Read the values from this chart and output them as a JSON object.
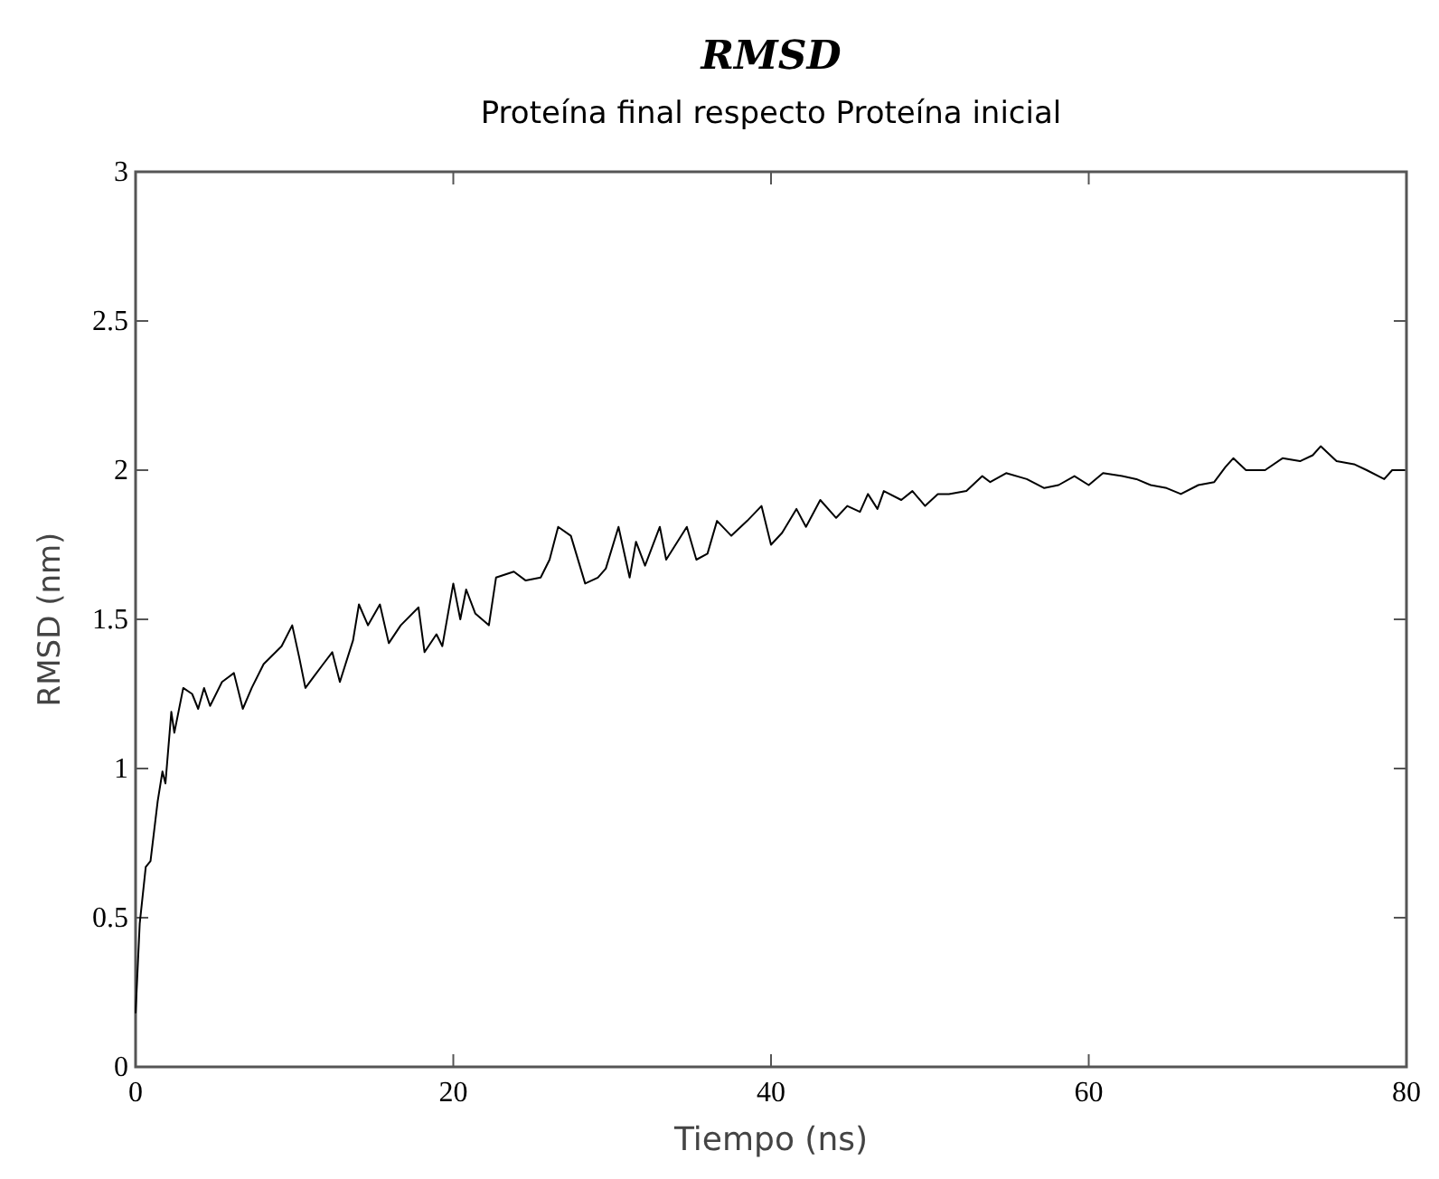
{
  "chart_data": {
    "type": "line",
    "title": "RMSD",
    "subtitle": "Proteína final respecto Proteína inicial",
    "xlabel": "Tiempo (ns)",
    "ylabel": "RMSD (nm)",
    "xlim": [
      0,
      80
    ],
    "ylim": [
      0,
      3
    ],
    "xticks": [
      0,
      20,
      40,
      60,
      80
    ],
    "yticks": [
      0,
      0.5,
      1,
      1.5,
      2,
      2.5,
      3
    ],
    "grid": false,
    "marker": "none",
    "line_style": "solid",
    "series": [
      {
        "color": "#000000",
        "x": [
          0,
          0.26,
          0.64,
          0.94,
          1.39,
          1.69,
          1.88,
          2.25,
          2.44,
          3.0,
          3.56,
          3.94,
          4.31,
          4.69,
          5.44,
          6.19,
          6.75,
          7.31,
          8.06,
          9.19,
          9.86,
          10.31,
          10.69,
          11.25,
          11.81,
          12.38,
          12.86,
          13.69,
          14.06,
          14.63,
          15.38,
          15.94,
          16.69,
          17.81,
          18.19,
          18.94,
          19.31,
          20.0,
          20.44,
          20.81,
          21.38,
          22.24,
          22.69,
          23.81,
          24.56,
          25.5,
          26.06,
          26.6,
          27.4,
          28.3,
          29.1,
          29.6,
          30.4,
          31.1,
          31.5,
          32.07,
          33.0,
          33.4,
          34.7,
          35.3,
          36.0,
          36.6,
          37.5,
          38.5,
          39.4,
          40.0,
          40.7,
          41.6,
          42.2,
          43.1,
          44.1,
          44.8,
          45.6,
          46.1,
          46.7,
          47.1,
          48.2,
          48.9,
          49.7,
          50.5,
          51.2,
          52.3,
          53.3,
          53.8,
          54.8,
          56.1,
          57.2,
          58.1,
          59.1,
          60.0,
          60.9,
          62.1,
          63.0,
          63.9,
          64.9,
          65.8,
          66.9,
          67.9,
          68.6,
          69.1,
          69.9,
          71.1,
          72.2,
          73.3,
          74.1,
          74.6,
          75.6,
          76.7,
          77.5,
          78.6,
          79.1,
          79.9
        ],
        "values": [
          0.18,
          0.48,
          0.67,
          0.69,
          0.89,
          0.99,
          0.95,
          1.19,
          1.12,
          1.27,
          1.25,
          1.2,
          1.27,
          1.21,
          1.29,
          1.32,
          1.2,
          1.27,
          1.35,
          1.41,
          1.48,
          1.37,
          1.27,
          1.31,
          1.35,
          1.39,
          1.29,
          1.43,
          1.55,
          1.48,
          1.55,
          1.42,
          1.48,
          1.54,
          1.39,
          1.45,
          1.41,
          1.62,
          1.5,
          1.6,
          1.52,
          1.48,
          1.64,
          1.66,
          1.63,
          1.64,
          1.7,
          1.81,
          1.78,
          1.62,
          1.64,
          1.67,
          1.81,
          1.64,
          1.76,
          1.68,
          1.81,
          1.7,
          1.81,
          1.7,
          1.72,
          1.83,
          1.78,
          1.83,
          1.88,
          1.75,
          1.79,
          1.87,
          1.81,
          1.9,
          1.84,
          1.88,
          1.86,
          1.92,
          1.87,
          1.93,
          1.9,
          1.93,
          1.88,
          1.92,
          1.92,
          1.93,
          1.98,
          1.96,
          1.99,
          1.97,
          1.94,
          1.95,
          1.98,
          1.95,
          1.99,
          1.98,
          1.97,
          1.95,
          1.94,
          1.92,
          1.95,
          1.96,
          2.01,
          2.04,
          2.0,
          2.0,
          2.04,
          2.03,
          2.05,
          2.08,
          2.03,
          2.02,
          2.0,
          1.97,
          2.0,
          2.0
        ]
      }
    ]
  }
}
